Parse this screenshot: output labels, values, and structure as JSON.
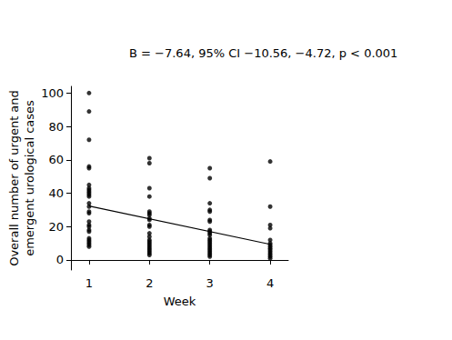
{
  "chart_data": {
    "type": "scatter",
    "annotation": "B = −7.64, 95% CI −10.56, −4.72, p < 0.001",
    "x_label": "Week",
    "y_label": "Overall number of urgent and\nemergent urological cases",
    "xlim": [
      0.7,
      4.3
    ],
    "xticks": [
      1,
      2,
      3,
      4
    ],
    "ylim": [
      -6,
      104
    ],
    "yticks": [
      0,
      20,
      40,
      60,
      80,
      100
    ],
    "grid": false,
    "series": [
      {
        "type": "scatter",
        "color": "#000000",
        "marker": "circle",
        "x": [
          1,
          1,
          1,
          1,
          1,
          1,
          1,
          1,
          1,
          1,
          1,
          1,
          1,
          1,
          1,
          1,
          1,
          1,
          1,
          1,
          1,
          1,
          1,
          1,
          1,
          1,
          1,
          2,
          2,
          2,
          2,
          2,
          2,
          2,
          2,
          2,
          2,
          2,
          2,
          2,
          2,
          2,
          2,
          2,
          2,
          2,
          2,
          2,
          2,
          2,
          3,
          3,
          3,
          3,
          3,
          3,
          3,
          3,
          3,
          3,
          3,
          3,
          3,
          3,
          3,
          3,
          3,
          3,
          3,
          3,
          3,
          3,
          3,
          4,
          4,
          4,
          4,
          4,
          4,
          4,
          4,
          4,
          4,
          4,
          4,
          4,
          4,
          4
        ],
        "values": [
          100,
          89,
          72,
          56,
          55,
          45,
          43,
          42,
          41,
          40,
          39,
          38,
          34,
          32,
          29,
          28,
          23,
          21,
          20,
          18,
          17,
          13,
          12,
          11,
          10,
          9,
          8,
          61,
          58,
          43,
          38,
          29,
          28,
          27,
          25,
          24,
          21,
          20,
          16,
          14,
          12,
          11,
          10,
          9,
          8,
          7,
          6,
          5,
          4,
          3,
          55,
          49,
          34,
          30,
          29,
          24,
          23,
          18,
          17,
          16,
          15,
          13,
          12,
          11,
          10,
          9,
          8,
          7,
          6,
          5,
          4,
          3,
          2,
          59,
          32,
          21,
          19,
          12,
          10,
          9,
          8,
          7,
          6,
          5,
          4,
          3,
          2,
          1
        ]
      },
      {
        "type": "line",
        "color": "#000000",
        "line_style": "solid",
        "x": [
          1,
          4
        ],
        "values": [
          32.3,
          9.38
        ]
      }
    ]
  }
}
